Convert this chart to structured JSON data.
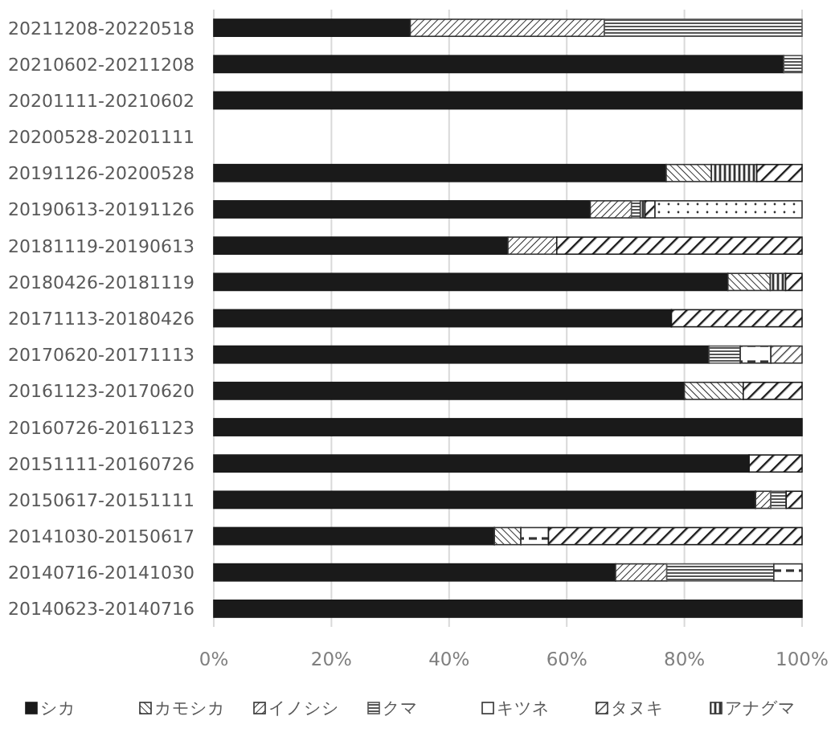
{
  "chart_data": {
    "type": "bar",
    "orientation": "horizontal",
    "stacked": true,
    "grid": "x",
    "legend": "bottom",
    "categories": [
      "20211208-20220518",
      "20210602-20211208",
      "20201111-20210602",
      "20200528-20201111",
      "20191126-20200528",
      "20190613-20191126",
      "20181119-20190613",
      "20180426-20181119",
      "20171113-20180426",
      "20170620-20171113",
      "20161123-20170620",
      "20160726-20161123",
      "20151111-20160726",
      "20150617-20151111",
      "20141030-20150617",
      "20140716-20141030",
      "20140623-20140716"
    ],
    "xlim": [
      0,
      100
    ],
    "xticks": [
      {
        "value": 0,
        "label": "0%"
      },
      {
        "value": 20,
        "label": "20%"
      },
      {
        "value": 40,
        "label": "40%"
      },
      {
        "value": 60,
        "label": "60%"
      },
      {
        "value": 80,
        "label": "80%"
      },
      {
        "value": 100,
        "label": "100%"
      }
    ],
    "series": [
      {
        "name": "シカ",
        "color": "#1a1a1a",
        "values": [
          33.4,
          96.9,
          100,
          null,
          76.9,
          64.0,
          50.0,
          87.4,
          77.8,
          84.2,
          80.0,
          100,
          91.0,
          92.1,
          47.7,
          68.3,
          100
        ]
      },
      {
        "name": "カモシカ",
        "color": "#333333",
        "values": [
          null,
          null,
          null,
          null,
          7.7,
          null,
          null,
          7.2,
          null,
          null,
          10.0,
          null,
          null,
          null,
          4.5,
          null,
          null
        ]
      },
      {
        "name": "イノシシ",
        "color": "#333333",
        "values": [
          33.0,
          null,
          null,
          null,
          null,
          7.0,
          8.3,
          null,
          null,
          null,
          null,
          null,
          null,
          2.6,
          null,
          8.7,
          null
        ]
      },
      {
        "name": "クマ",
        "color": "#555555",
        "values": [
          33.6,
          3.1,
          null,
          null,
          null,
          1.5,
          null,
          null,
          null,
          5.3,
          null,
          null,
          null,
          2.6,
          null,
          18.2,
          null
        ]
      },
      {
        "name": "キツネ",
        "color": "#333333",
        "values": [
          null,
          null,
          null,
          null,
          null,
          null,
          null,
          null,
          null,
          5.2,
          null,
          null,
          null,
          null,
          4.7,
          4.8,
          null
        ]
      },
      {
        "name": "タヌキ",
        "color": "#333333",
        "values": [
          null,
          null,
          null,
          null,
          null,
          null,
          null,
          null,
          null,
          5.3,
          null,
          null,
          null,
          null,
          null,
          null,
          null
        ]
      },
      {
        "name": "アナグマ",
        "color": "#333333",
        "values": [
          null,
          null,
          null,
          null,
          7.7,
          0.8,
          null,
          2.6,
          null,
          null,
          null,
          null,
          null,
          null,
          null,
          null,
          null
        ]
      },
      {
        "color": "#1a1a1a",
        "values": [
          null,
          null,
          null,
          null,
          7.7,
          1.7,
          41.7,
          2.8,
          22.2,
          null,
          10.0,
          null,
          9.0,
          2.7,
          43.1,
          null,
          null
        ]
      },
      {
        "color": "#333333",
        "values": [
          null,
          null,
          null,
          null,
          null,
          25.0,
          null,
          null,
          null,
          null,
          null,
          null,
          null,
          null,
          null,
          null,
          null
        ]
      }
    ]
  }
}
